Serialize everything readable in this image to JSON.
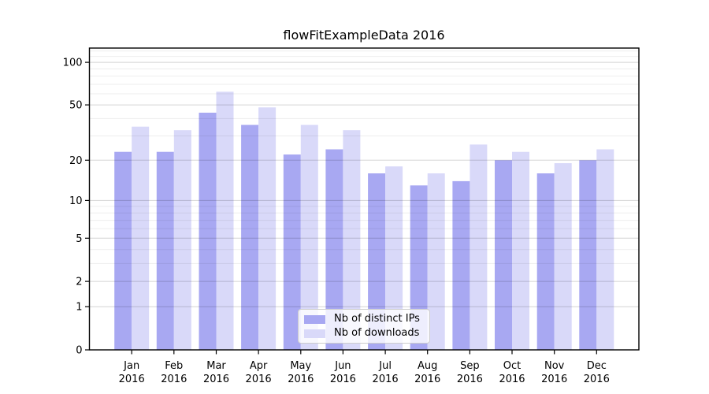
{
  "chart_data": {
    "type": "bar",
    "title": "flowFitExampleData 2016",
    "year": "2016",
    "categories": [
      "Jan",
      "Feb",
      "Mar",
      "Apr",
      "May",
      "Jun",
      "Jul",
      "Aug",
      "Sep",
      "Oct",
      "Nov",
      "Dec"
    ],
    "series": [
      {
        "name": "Nb of distinct IPs",
        "color": "#a8a8f2",
        "values": [
          23,
          23,
          44,
          36,
          22,
          24,
          16,
          13,
          14,
          20,
          16,
          20
        ]
      },
      {
        "name": "Nb of downloads",
        "color": "#d9d9f9",
        "values": [
          35,
          33,
          62,
          48,
          36,
          33,
          18,
          16,
          26,
          23,
          19,
          24
        ]
      }
    ],
    "xlabel": "",
    "ylabel": "",
    "yscale": "log1p",
    "ylim": [
      0,
      126
    ],
    "yticks": [
      0,
      1,
      2,
      5,
      10,
      20,
      50,
      100
    ],
    "minor_gridlines": [
      3,
      4,
      6,
      7,
      8,
      9,
      30,
      40,
      60,
      70,
      80,
      90,
      110,
      120
    ],
    "grid": true,
    "legend_position": "lower center"
  },
  "colors": {
    "bar_distinct_ips": "#a8a8f2",
    "bar_downloads": "#d9d9f9",
    "axis": "#000000",
    "grid_major": "rgba(0,0,0,0.17)",
    "grid_minor": "rgba(0,0,0,0.065)",
    "legend_border": "#cccccc",
    "legend_bg": "rgba(255,255,255,0.8)"
  }
}
